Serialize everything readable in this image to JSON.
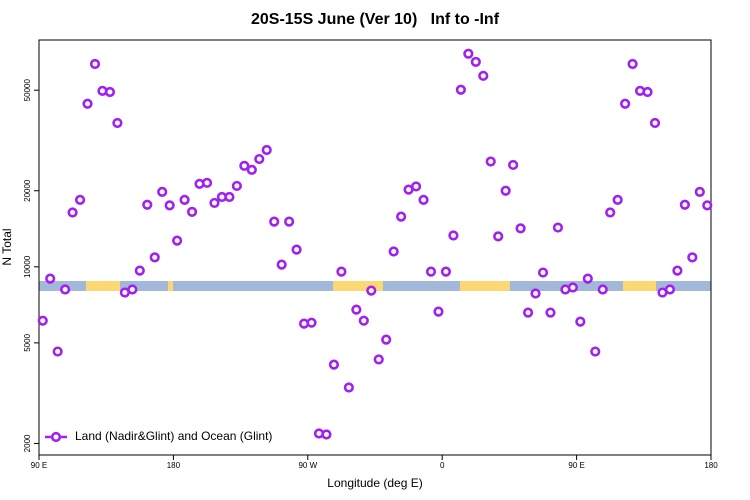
{
  "chart_data": {
    "type": "scatter",
    "log_y": true,
    "title": "20S-15S June (Ver 10)   Inf to -Inf",
    "xlabel": "Longitude (deg E)",
    "ylabel": "N Total",
    "xlim": [
      90,
      540
    ],
    "ylim": [
      1800,
      79000
    ],
    "xticks": [
      {
        "value": 90,
        "label": "90 E"
      },
      180,
      {
        "value": 270,
        "label": "90 W"
      },
      {
        "value": 360,
        "label": "0"
      },
      {
        "value": 450,
        "label": "90 E"
      },
      {
        "value": 540,
        "label": "180"
      }
    ],
    "yticks": [
      2000,
      5000,
      10000,
      20000,
      50000
    ],
    "legend_position": "bottom-left",
    "x": [
      92.5,
      97.5,
      102.5,
      107.5,
      112.5,
      117.5,
      122.5,
      127.5,
      132.5,
      137.5,
      142.5,
      147.5,
      152.5,
      157.5,
      162.5,
      167.5,
      172.5,
      177.5,
      182.5,
      187.5,
      192.5,
      197.5,
      202.5,
      207.5,
      212.5,
      217.5,
      222.5,
      227.5,
      232.5,
      237.5,
      242.5,
      247.5,
      252.5,
      257.5,
      262.5,
      267.5,
      272.5,
      277.5,
      282.5,
      287.5,
      292.5,
      297.5,
      302.5,
      307.5,
      312.5,
      317.5,
      322.5,
      327.5,
      332.5,
      337.5,
      342.5,
      347.5,
      352.5,
      357.5,
      362.5,
      367.5,
      372.5,
      377.5,
      382.5,
      387.5,
      392.5,
      397.5,
      402.5,
      407.5,
      412.5,
      417.5,
      422.5,
      427.5,
      432.5,
      437.5,
      442.5,
      447.5,
      452.5,
      457.5,
      462.5,
      467.5,
      472.5,
      477.5,
      482.5,
      487.5,
      492.5,
      497.5,
      502.5,
      507.5,
      512.5,
      517.5,
      522.5,
      527.5,
      532.5,
      537.5
    ],
    "series": [
      {
        "name": "Land (Nadir&Glint) and Ocean (Glint)",
        "color": "#a020f0",
        "values": [
          6120,
          8980,
          4620,
          8130,
          16400,
          18400,
          44200,
          63500,
          49700,
          49200,
          37100,
          7910,
          8130,
          9660,
          17600,
          10900,
          19800,
          17500,
          12700,
          18400,
          16500,
          21300,
          21500,
          17900,
          18900,
          18900,
          20900,
          25100,
          24200,
          26700,
          29000,
          15100,
          10200,
          15100,
          11700,
          5960,
          6010,
          2190,
          2170,
          4100,
          9570,
          3330,
          6770,
          6120,
          8050,
          4300,
          5150,
          11500,
          15800,
          20200,
          20800,
          18400,
          9570,
          6650,
          9570,
          13300,
          50200,
          69700,
          64700,
          57000,
          26100,
          13200,
          20000,
          25300,
          14200,
          6590,
          7840,
          9490,
          6590,
          14300,
          8130,
          8280,
          6070,
          8980,
          4620,
          8130,
          16400,
          18400,
          44200,
          63500,
          49700,
          49200,
          37100,
          7910,
          8130,
          9660,
          17600,
          10900,
          19800,
          17500
        ]
      }
    ]
  }
}
